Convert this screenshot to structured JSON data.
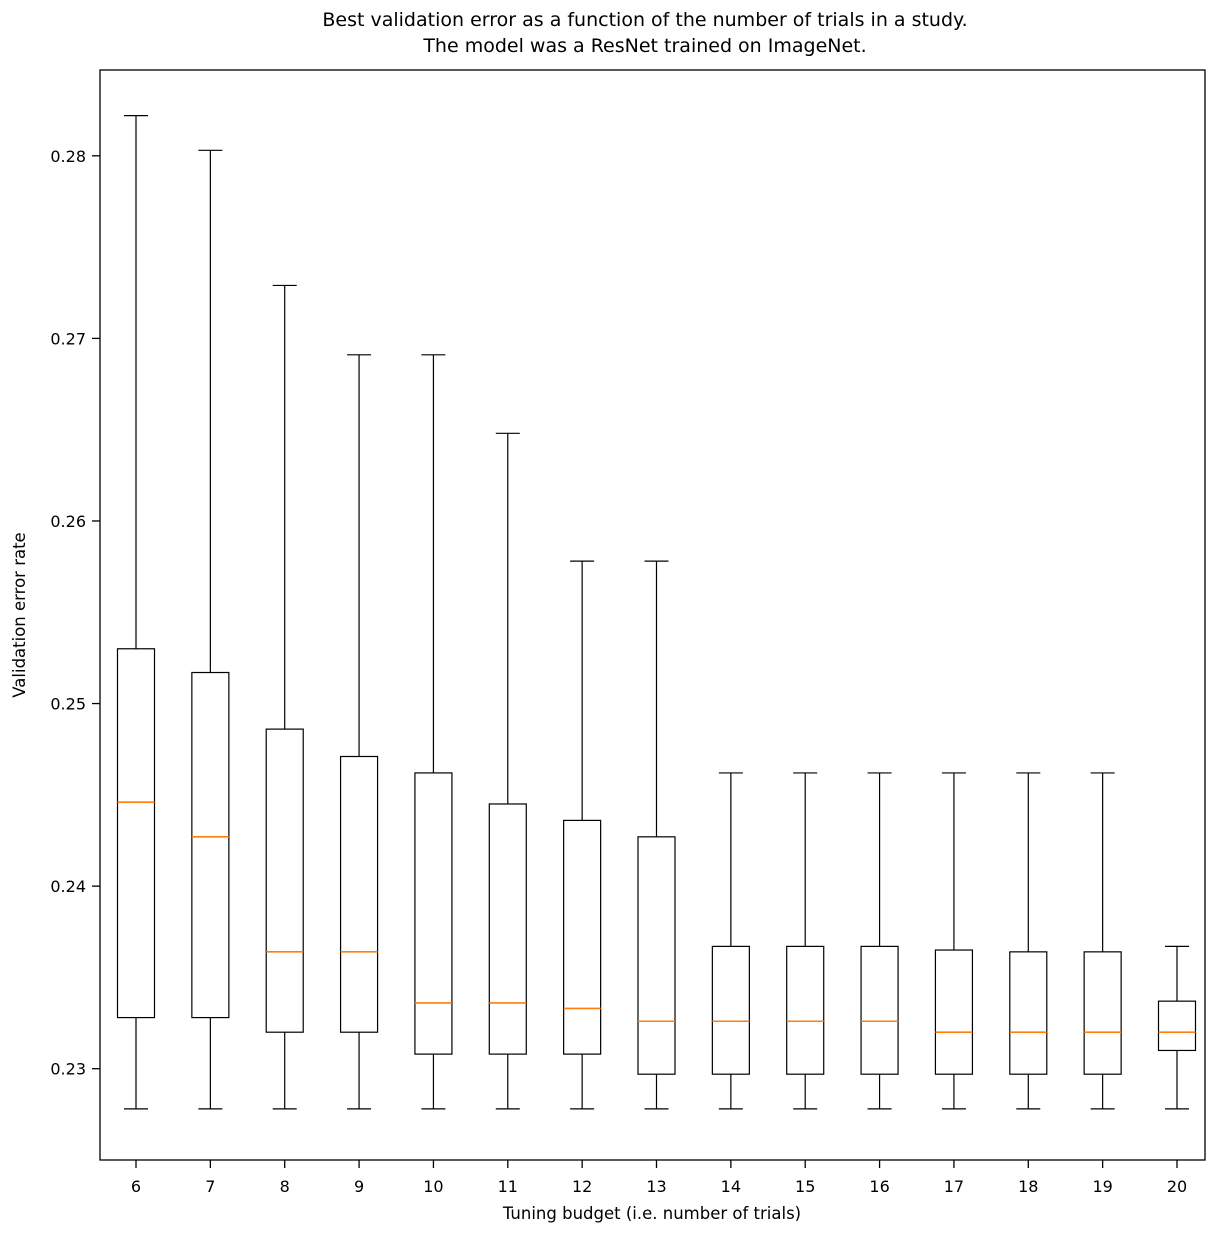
{
  "figure": {
    "title_line1": "Best validation error as a function of the number of trials in a study.",
    "title_line2": "The model was a ResNet trained on ImageNet.",
    "background_color": "#ffffff"
  },
  "chart_data": {
    "type": "boxplot",
    "title": "Best validation error as a function of the number of trials in a study.\nThe model was a ResNet trained on ImageNet.",
    "xlabel": "Tuning budget (i.e. number of trials)",
    "ylabel": "Validation error rate",
    "categories": [
      6,
      7,
      8,
      9,
      10,
      11,
      12,
      13,
      14,
      15,
      16,
      17,
      18,
      19,
      20
    ],
    "yticks": [
      0.23,
      0.24,
      0.25,
      0.26,
      0.27,
      0.28
    ],
    "ylim": [
      0.225,
      0.2847
    ],
    "grid": false,
    "legend": "none",
    "box_fill_color": "#ffffff",
    "box_stroke_color": "#000000",
    "median_color": "#ff7f0e",
    "boxes": [
      {
        "x": 6,
        "whislo": 0.2278,
        "q1": 0.2328,
        "med": 0.2446,
        "q3": 0.253,
        "whishi": 0.2822
      },
      {
        "x": 7,
        "whislo": 0.2278,
        "q1": 0.2328,
        "med": 0.2427,
        "q3": 0.2517,
        "whishi": 0.2803
      },
      {
        "x": 8,
        "whislo": 0.2278,
        "q1": 0.232,
        "med": 0.2364,
        "q3": 0.2486,
        "whishi": 0.2729
      },
      {
        "x": 9,
        "whislo": 0.2278,
        "q1": 0.232,
        "med": 0.2364,
        "q3": 0.2471,
        "whishi": 0.2691
      },
      {
        "x": 10,
        "whislo": 0.2278,
        "q1": 0.2308,
        "med": 0.2336,
        "q3": 0.2462,
        "whishi": 0.2691
      },
      {
        "x": 11,
        "whislo": 0.2278,
        "q1": 0.2308,
        "med": 0.2336,
        "q3": 0.2445,
        "whishi": 0.2648
      },
      {
        "x": 12,
        "whislo": 0.2278,
        "q1": 0.2308,
        "med": 0.2333,
        "q3": 0.2436,
        "whishi": 0.2578
      },
      {
        "x": 13,
        "whislo": 0.2278,
        "q1": 0.2297,
        "med": 0.2326,
        "q3": 0.2427,
        "whishi": 0.2578
      },
      {
        "x": 14,
        "whislo": 0.2278,
        "q1": 0.2297,
        "med": 0.2326,
        "q3": 0.2367,
        "whishi": 0.2462
      },
      {
        "x": 15,
        "whislo": 0.2278,
        "q1": 0.2297,
        "med": 0.2326,
        "q3": 0.2367,
        "whishi": 0.2462
      },
      {
        "x": 16,
        "whislo": 0.2278,
        "q1": 0.2297,
        "med": 0.2326,
        "q3": 0.2367,
        "whishi": 0.2462
      },
      {
        "x": 17,
        "whislo": 0.2278,
        "q1": 0.2297,
        "med": 0.232,
        "q3": 0.2365,
        "whishi": 0.2462
      },
      {
        "x": 18,
        "whislo": 0.2278,
        "q1": 0.2297,
        "med": 0.232,
        "q3": 0.2364,
        "whishi": 0.2462
      },
      {
        "x": 19,
        "whislo": 0.2278,
        "q1": 0.2297,
        "med": 0.232,
        "q3": 0.2364,
        "whishi": 0.2462
      },
      {
        "x": 20,
        "whislo": 0.2278,
        "q1": 0.231,
        "med": 0.232,
        "q3": 0.2337,
        "whishi": 0.2367
      }
    ]
  }
}
